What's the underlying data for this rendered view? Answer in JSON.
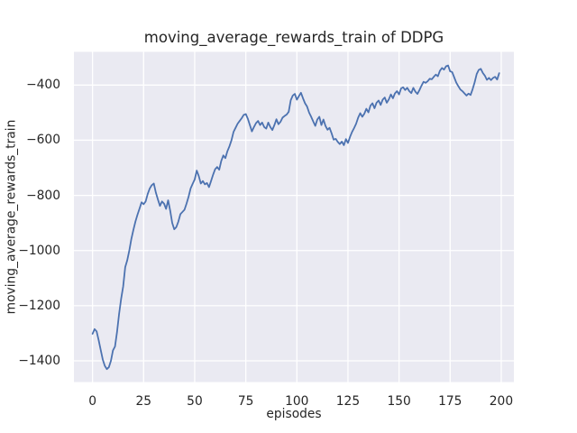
{
  "chart_data": {
    "type": "line",
    "title": "moving_average_rewards_train of DDPG",
    "xlabel": "episodes",
    "ylabel": "moving_average_rewards_train",
    "x_ticks": [
      0,
      25,
      50,
      75,
      100,
      125,
      150,
      175,
      200
    ],
    "x_tick_labels": [
      "0",
      "25",
      "50",
      "75",
      "100",
      "125",
      "150",
      "175",
      "200"
    ],
    "y_ticks": [
      -400,
      -600,
      -800,
      -1000,
      -1200,
      -1400
    ],
    "y_tick_labels": [
      "−400",
      "−600",
      "−800",
      "−1000",
      "−1200",
      "−1400"
    ],
    "xlim": [
      -9.1,
      206.2
    ],
    "ylim": [
      -1476.8,
      -279.6
    ],
    "grid": true,
    "legend_position": "none",
    "colors": {
      "figure_background": "#ffffff",
      "axes_background": "#eaeaf2",
      "grid": "#ffffff",
      "line": "#4c72b0",
      "text": "#262626"
    },
    "series": [
      {
        "name": "moving_average_rewards_train",
        "x_start": 0,
        "x_step": 1,
        "y": [
          -1302,
          -1285,
          -1293,
          -1325,
          -1360,
          -1395,
          -1418,
          -1430,
          -1423,
          -1400,
          -1362,
          -1348,
          -1295,
          -1230,
          -1175,
          -1130,
          -1060,
          -1035,
          -1000,
          -958,
          -925,
          -895,
          -870,
          -848,
          -825,
          -832,
          -822,
          -795,
          -775,
          -763,
          -757,
          -790,
          -815,
          -838,
          -822,
          -830,
          -849,
          -818,
          -855,
          -900,
          -923,
          -915,
          -895,
          -868,
          -860,
          -852,
          -830,
          -805,
          -775,
          -758,
          -742,
          -710,
          -730,
          -757,
          -748,
          -760,
          -755,
          -770,
          -748,
          -725,
          -705,
          -697,
          -707,
          -675,
          -655,
          -665,
          -640,
          -622,
          -600,
          -570,
          -555,
          -540,
          -530,
          -520,
          -508,
          -505,
          -522,
          -545,
          -568,
          -552,
          -538,
          -530,
          -545,
          -536,
          -552,
          -558,
          -536,
          -552,
          -563,
          -545,
          -524,
          -542,
          -533,
          -518,
          -512,
          -507,
          -497,
          -455,
          -438,
          -432,
          -453,
          -440,
          -428,
          -448,
          -466,
          -478,
          -500,
          -515,
          -532,
          -548,
          -525,
          -515,
          -545,
          -525,
          -548,
          -562,
          -555,
          -575,
          -598,
          -595,
          -606,
          -614,
          -605,
          -618,
          -596,
          -610,
          -588,
          -570,
          -556,
          -540,
          -518,
          -502,
          -515,
          -504,
          -486,
          -499,
          -475,
          -466,
          -484,
          -464,
          -456,
          -472,
          -453,
          -445,
          -464,
          -452,
          -434,
          -448,
          -430,
          -422,
          -434,
          -412,
          -408,
          -418,
          -410,
          -422,
          -429,
          -410,
          -424,
          -432,
          -418,
          -402,
          -388,
          -392,
          -386,
          -377,
          -379,
          -370,
          -362,
          -368,
          -348,
          -338,
          -344,
          -332,
          -329,
          -350,
          -353,
          -372,
          -391,
          -404,
          -416,
          -422,
          -430,
          -438,
          -431,
          -436,
          -415,
          -390,
          -360,
          -345,
          -341,
          -356,
          -366,
          -381,
          -374,
          -382,
          -374,
          -370,
          -380,
          -357
        ]
      }
    ]
  }
}
